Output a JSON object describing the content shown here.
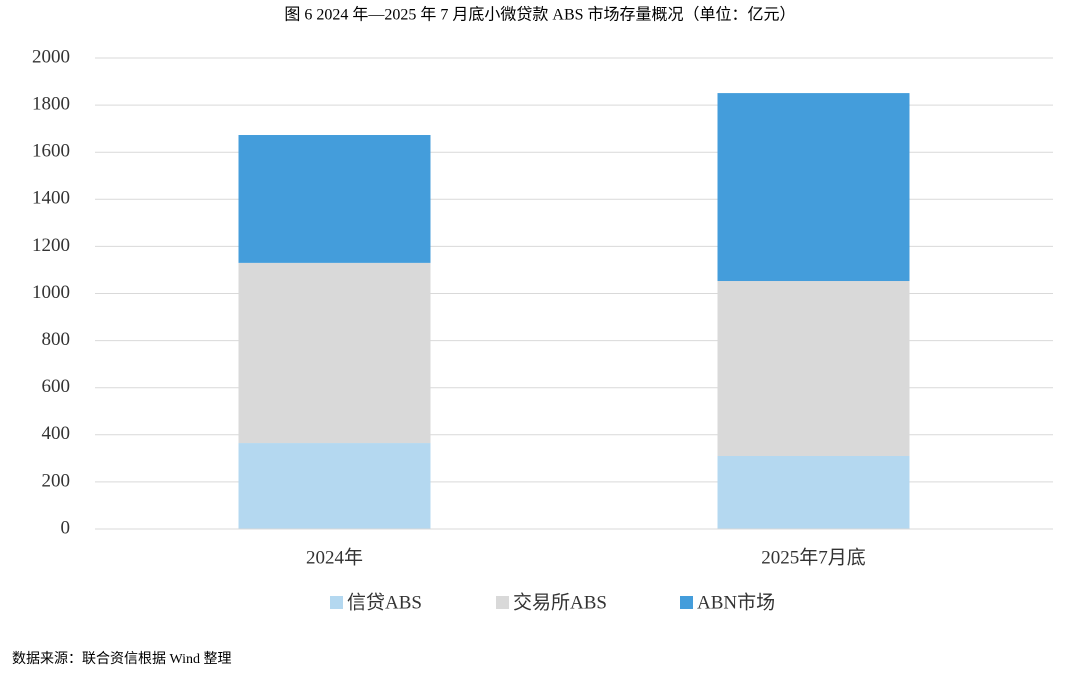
{
  "chart_data": {
    "type": "stacked-bar",
    "title": "图 6   2024 年—2025 年 7 月底小微贷款 ABS 市场存量概况（单位：亿元）",
    "source": "数据来源：联合资信根据 Wind 整理",
    "categories": [
      "2024年",
      "2025年7月底"
    ],
    "series": [
      {
        "name": "信贷ABS",
        "color": "#b4d8f0",
        "values": [
          365,
          310
        ]
      },
      {
        "name": "交易所ABS",
        "color": "#d9d9d9",
        "values": [
          765,
          743
        ]
      },
      {
        "name": "ABN市场",
        "color": "#449ddb",
        "values": [
          543,
          798
        ]
      }
    ],
    "ylim": [
      0,
      2000
    ],
    "yticks": [
      0,
      200,
      400,
      600,
      800,
      1000,
      1200,
      1400,
      1600,
      1800,
      2000
    ],
    "grid": true
  }
}
